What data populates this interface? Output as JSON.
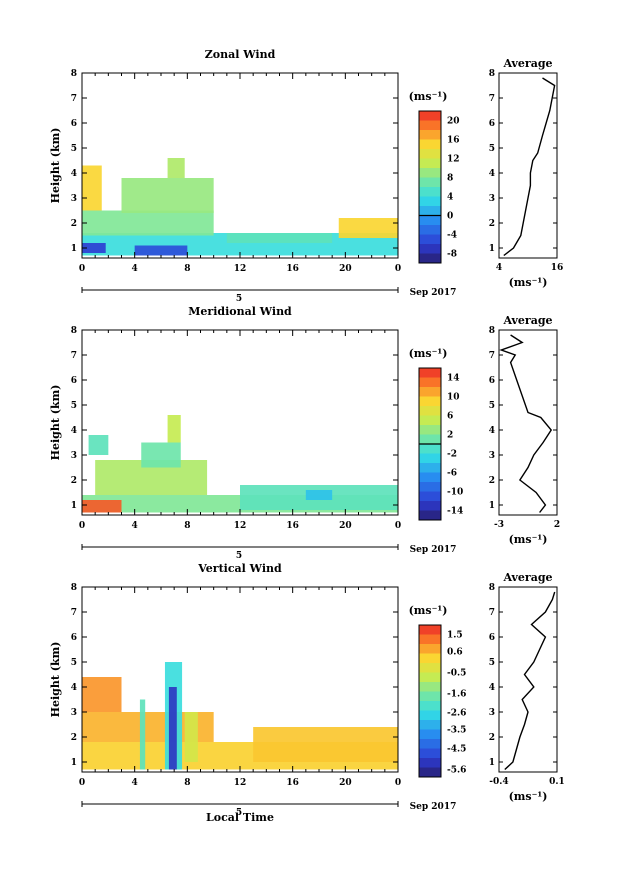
{
  "chart_data": [
    {
      "type": "heatmap",
      "title": "Zonal Wind",
      "xlabel": "",
      "ylabel": "Height (km)",
      "x_ticks": [
        "0",
        "4",
        "8",
        "12",
        "16",
        "20",
        "0"
      ],
      "y_ticks": [
        "1",
        "2",
        "3",
        "4",
        "5",
        "6",
        "7",
        "8"
      ],
      "xlim_hours": [
        0,
        24
      ],
      "ylim_km": [
        0.6,
        8
      ],
      "date_label": "5",
      "date_suffix": "Sep 2017",
      "colorbar": {
        "unit": "(ms⁻¹)",
        "ticks": [
          "20",
          "16",
          "12",
          "8",
          "4",
          "0",
          "-4",
          "-8"
        ],
        "range": [
          -10,
          22
        ],
        "zero_line": 0
      },
      "regions": [
        {
          "x": [
            0,
            24
          ],
          "y": [
            0.7,
            1.6
          ],
          "value": 4
        },
        {
          "x": [
            0,
            1.8
          ],
          "y": [
            0.8,
            1.2
          ],
          "value": -6
        },
        {
          "x": [
            4.0,
            8.0
          ],
          "y": [
            0.7,
            1.1
          ],
          "value": -5
        },
        {
          "x": [
            0,
            10
          ],
          "y": [
            1.5,
            2.5
          ],
          "value": 8
        },
        {
          "x": [
            0,
            1.5
          ],
          "y": [
            2.5,
            4.3
          ],
          "value": 15
        },
        {
          "x": [
            3,
            10
          ],
          "y": [
            2.4,
            3.8
          ],
          "value": 9
        },
        {
          "x": [
            6.5,
            7.8
          ],
          "y": [
            3.8,
            4.6
          ],
          "value": 10
        },
        {
          "x": [
            19.5,
            24
          ],
          "y": [
            1.4,
            2.2
          ],
          "value": 15
        },
        {
          "x": [
            11,
            19
          ],
          "y": [
            1.2,
            1.6
          ],
          "value": 6
        }
      ],
      "average_profile": {
        "title": "Average",
        "unit": "(ms⁻¹)",
        "x_ticks": [
          "4",
          "16"
        ],
        "xlim": [
          4,
          16
        ],
        "height": [
          0.7,
          1.0,
          1.5,
          2.0,
          2.5,
          3.0,
          3.5,
          4.0,
          4.5,
          4.8,
          5.5,
          6.5,
          7.0,
          7.5,
          7.8
        ],
        "value": [
          5,
          7,
          8.5,
          9,
          9.5,
          10,
          10.5,
          10.5,
          11,
          12,
          13,
          14.5,
          15,
          15.5,
          13
        ]
      }
    },
    {
      "type": "heatmap",
      "title": "Meridional Wind",
      "xlabel": "",
      "ylabel": "Height (km)",
      "x_ticks": [
        "0",
        "4",
        "8",
        "12",
        "16",
        "20",
        "0"
      ],
      "y_ticks": [
        "1",
        "2",
        "3",
        "4",
        "5",
        "6",
        "7",
        "8"
      ],
      "xlim_hours": [
        0,
        24
      ],
      "ylim_km": [
        0.6,
        8
      ],
      "date_label": "5",
      "date_suffix": "Sep 2017",
      "colorbar": {
        "unit": "(ms⁻¹)",
        "ticks": [
          "14",
          "10",
          "6",
          "2",
          "-2",
          "-6",
          "-10",
          "-14"
        ],
        "range": [
          -16,
          16
        ],
        "zero_line": 0
      },
      "regions": [
        {
          "x": [
            0,
            24
          ],
          "y": [
            0.7,
            1.4
          ],
          "value": 2
        },
        {
          "x": [
            0,
            3.0
          ],
          "y": [
            0.7,
            1.2
          ],
          "value": 14
        },
        {
          "x": [
            1.0,
            9.5
          ],
          "y": [
            1.4,
            2.8
          ],
          "value": 4
        },
        {
          "x": [
            4.5,
            7.5
          ],
          "y": [
            2.5,
            3.5
          ],
          "value": 1
        },
        {
          "x": [
            6.5,
            7.5
          ],
          "y": [
            3.5,
            4.6
          ],
          "value": 5
        },
        {
          "x": [
            0.5,
            2.0
          ],
          "y": [
            3.0,
            3.8
          ],
          "value": 0
        },
        {
          "x": [
            12,
            24
          ],
          "y": [
            0.8,
            1.8
          ],
          "value": 0
        },
        {
          "x": [
            17,
            19
          ],
          "y": [
            1.2,
            1.6
          ],
          "value": -4
        }
      ],
      "average_profile": {
        "title": "Average",
        "unit": "(ms⁻¹)",
        "x_ticks": [
          "-3",
          "2"
        ],
        "xlim": [
          -3,
          2
        ],
        "height": [
          0.7,
          1.0,
          1.5,
          2.0,
          2.5,
          3.0,
          3.5,
          4.0,
          4.5,
          4.7,
          6.7,
          7.0,
          7.2,
          7.5,
          7.8
        ],
        "value": [
          0.5,
          1.0,
          0.2,
          -1.2,
          -0.5,
          0.0,
          0.8,
          1.5,
          0.6,
          -0.5,
          -2.0,
          -1.6,
          -2.8,
          -1.0,
          -2.0
        ]
      }
    },
    {
      "type": "heatmap",
      "title": "Vertical Wind",
      "xlabel": "Local Time",
      "ylabel": "Height (km)",
      "x_ticks": [
        "0",
        "4",
        "8",
        "12",
        "16",
        "20",
        "0"
      ],
      "y_ticks": [
        "1",
        "2",
        "3",
        "4",
        "5",
        "6",
        "7",
        "8"
      ],
      "xlim_hours": [
        0,
        24
      ],
      "ylim_km": [
        0.6,
        8
      ],
      "date_label": "5",
      "date_suffix": "Sep 2017",
      "colorbar": {
        "unit": "(ms⁻¹)",
        "ticks": [
          "1.5",
          "0.6",
          "-0.5",
          "-1.6",
          "-2.6",
          "-3.5",
          "-4.5",
          "-5.6"
        ],
        "range": [
          -6,
          2
        ],
        "zero_line": null
      },
      "regions": [
        {
          "x": [
            0,
            24
          ],
          "y": [
            0.7,
            1.8
          ],
          "value": 0.3
        },
        {
          "x": [
            0,
            10
          ],
          "y": [
            1.8,
            3.0
          ],
          "value": 0.6
        },
        {
          "x": [
            0,
            3
          ],
          "y": [
            3.0,
            4.4
          ],
          "value": 0.9
        },
        {
          "x": [
            13,
            24
          ],
          "y": [
            1.0,
            2.4
          ],
          "value": 0.4
        },
        {
          "x": [
            6.3,
            7.6
          ],
          "y": [
            0.7,
            5.0
          ],
          "value": -2.5
        },
        {
          "x": [
            6.6,
            7.2
          ],
          "y": [
            0.7,
            4.0
          ],
          "value": -5.2
        },
        {
          "x": [
            4.4,
            4.8
          ],
          "y": [
            0.7,
            3.5
          ],
          "value": -2.0
        },
        {
          "x": [
            7.8,
            8.8
          ],
          "y": [
            1.0,
            3.0
          ],
          "value": -0.5
        }
      ],
      "average_profile": {
        "title": "Average",
        "unit": "(ms⁻¹)",
        "x_ticks": [
          "-0.4",
          "0.1"
        ],
        "xlim": [
          -0.4,
          0.1
        ],
        "height": [
          0.7,
          1.0,
          1.5,
          2.0,
          2.5,
          3.0,
          3.5,
          4.0,
          4.5,
          5.0,
          5.5,
          6.0,
          6.5,
          7.0,
          7.5,
          7.8
        ],
        "value": [
          -0.35,
          -0.28,
          -0.25,
          -0.22,
          -0.18,
          -0.15,
          -0.2,
          -0.1,
          -0.18,
          -0.1,
          -0.05,
          0.0,
          -0.12,
          0.0,
          0.06,
          0.08
        ]
      }
    }
  ]
}
